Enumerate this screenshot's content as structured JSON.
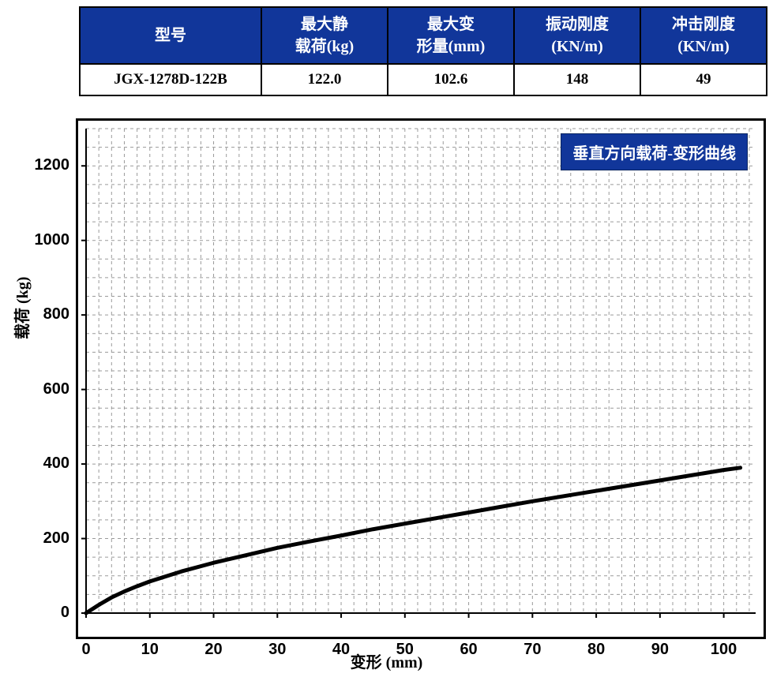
{
  "table": {
    "header_bg": "#11369a",
    "header_fg": "#ffffff",
    "cell_bg": "#ffffff",
    "cell_fg": "#000000",
    "border_color": "#000000",
    "header_fontsize": 20,
    "cell_fontsize": 19,
    "columns": [
      {
        "label_line1": "型号",
        "label_line2": ""
      },
      {
        "label_line1": "最大静",
        "label_line2": "载荷(kg)"
      },
      {
        "label_line1": "最大变",
        "label_line2": "形量(mm)"
      },
      {
        "label_line1": "振动刚度",
        "label_line2": "(KN/m)"
      },
      {
        "label_line1": "冲击刚度",
        "label_line2": "(KN/m)"
      }
    ],
    "row": {
      "model": "JGX-1278D-122B",
      "max_static_load_kg": "122.0",
      "max_deform_mm": "102.6",
      "vibration_stiffness_kn_m": "148",
      "impact_stiffness_kn_m": "49"
    }
  },
  "chart": {
    "type": "line",
    "title": "垂直方向载荷-变形曲线",
    "title_bg": "#11369a",
    "title_fg": "#ffffff",
    "title_fontsize": 20,
    "xlabel": "变形 (mm)",
    "ylabel": "载荷 (kg)",
    "label_fontsize": 20,
    "background_color": "#ffffff",
    "grid_color": "#9a9a9a",
    "grid_dash": "4,4",
    "axis_color": "#000000",
    "line_color": "#000000",
    "line_width": 5,
    "xlim": [
      0,
      105
    ],
    "ylim": [
      0,
      1300
    ],
    "xticks": [
      0,
      10,
      20,
      30,
      40,
      50,
      60,
      70,
      80,
      90,
      100
    ],
    "yticks": [
      0,
      200,
      400,
      600,
      800,
      1000,
      1200
    ],
    "x_minor_step": 2,
    "y_minor_step": 50,
    "series": {
      "x": [
        0,
        2,
        4,
        6,
        8,
        10,
        15,
        20,
        25,
        30,
        35,
        40,
        45,
        50,
        55,
        60,
        65,
        70,
        75,
        80,
        85,
        90,
        95,
        100,
        102.6
      ],
      "y": [
        0,
        22,
        42,
        58,
        72,
        85,
        112,
        135,
        155,
        175,
        192,
        208,
        225,
        240,
        255,
        270,
        285,
        300,
        314,
        328,
        342,
        356,
        370,
        384,
        390
      ]
    }
  }
}
